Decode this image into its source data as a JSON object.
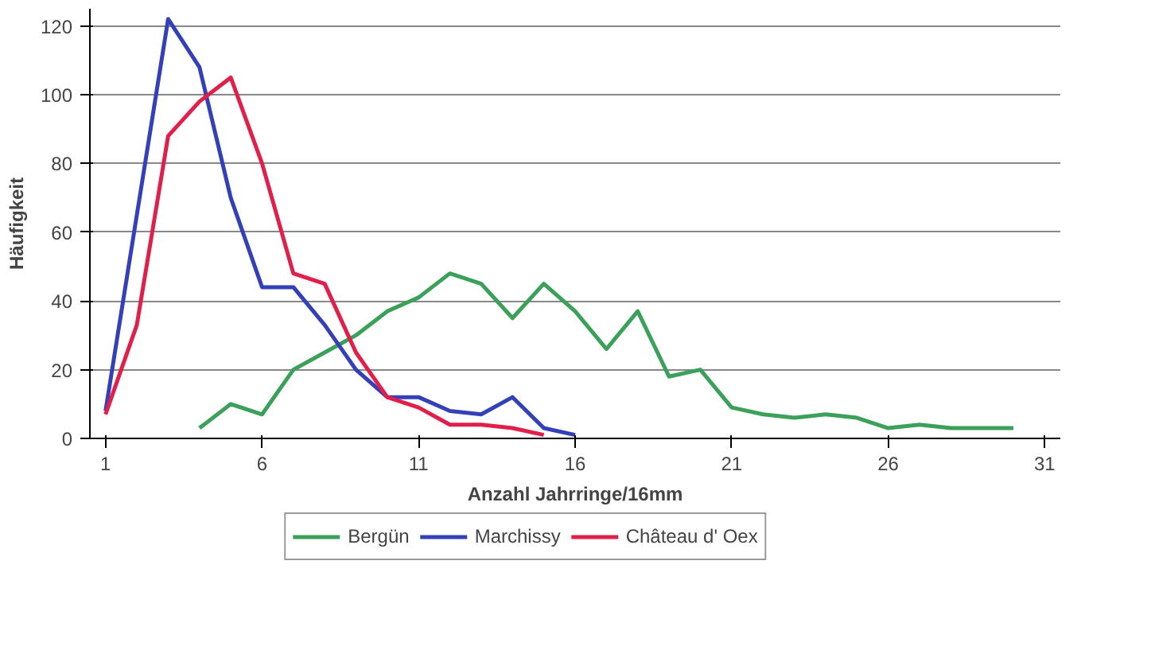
{
  "chart_data": {
    "type": "line",
    "xlabel": "Anzahl Jahrringe/16mm",
    "ylabel": "Häufigkeit",
    "xlim": [
      0.5,
      31.5
    ],
    "xticks": [
      1,
      6,
      11,
      16,
      21,
      26,
      31
    ],
    "ylim": [
      0,
      125
    ],
    "yticks": [
      0,
      20,
      40,
      60,
      80,
      100,
      120
    ],
    "grid": "y",
    "legend": "bottom",
    "marker": "none",
    "line_style": "solid",
    "series": [
      {
        "name": "Bergün",
        "color": "#3aa05a",
        "x": [
          4,
          5,
          6,
          7,
          8,
          9,
          10,
          11,
          12,
          13,
          14,
          15,
          16,
          17,
          18,
          19,
          20,
          21,
          22,
          23,
          24,
          25,
          26,
          27,
          28,
          29,
          30
        ],
        "values": [
          3,
          10,
          7,
          20,
          25,
          30,
          37,
          41,
          48,
          45,
          35,
          45,
          37,
          26,
          37,
          18,
          20,
          9,
          7,
          6,
          7,
          6,
          3,
          4,
          3,
          3,
          3
        ]
      },
      {
        "name": "Marchissy",
        "color": "#3440b8",
        "x": [
          1,
          2,
          3,
          4,
          5,
          6,
          7,
          8,
          9,
          10,
          11,
          12,
          13,
          14,
          15,
          16
        ],
        "values": [
          8,
          65,
          122,
          108,
          70,
          44,
          44,
          33,
          20,
          12,
          12,
          8,
          7,
          12,
          3,
          1
        ]
      },
      {
        "name": "Château d' Oex",
        "color": "#e0204a",
        "x": [
          1,
          2,
          3,
          4,
          5,
          6,
          7,
          8,
          9,
          10,
          11,
          12,
          13,
          14,
          15
        ],
        "values": [
          7,
          33,
          88,
          98,
          105,
          80,
          48,
          45,
          25,
          12,
          9,
          4,
          4,
          3,
          1
        ]
      }
    ]
  }
}
